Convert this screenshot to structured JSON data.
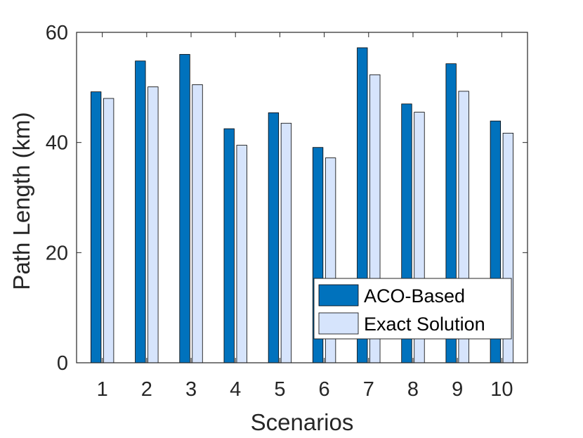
{
  "chart_data": {
    "type": "bar",
    "title": "",
    "xlabel": "Scenarios",
    "ylabel": "Path Length (km)",
    "categories": [
      "1",
      "2",
      "3",
      "4",
      "5",
      "6",
      "7",
      "8",
      "9",
      "10"
    ],
    "ylim": [
      0,
      60
    ],
    "yticks": [
      0,
      20,
      40,
      60
    ],
    "yticklabels": [
      "0",
      "20",
      "40",
      "60"
    ],
    "grid": false,
    "legend_position": "bottom-right",
    "series": [
      {
        "name": "ACO-Based",
        "color": "#0072bd",
        "values": [
          49.2,
          54.8,
          56.0,
          42.5,
          45.4,
          39.1,
          57.2,
          47.0,
          54.3,
          43.9
        ]
      },
      {
        "name": "Exact Solution",
        "color": "#d6e4fc",
        "values": [
          48.0,
          50.1,
          50.5,
          39.5,
          43.5,
          37.2,
          52.3,
          45.5,
          49.3,
          41.7
        ]
      }
    ]
  }
}
